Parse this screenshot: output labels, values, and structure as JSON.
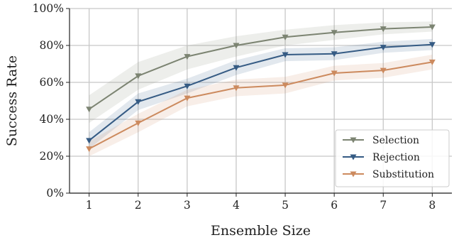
{
  "chart_data": {
    "type": "line",
    "title": "",
    "xlabel": "Ensemble Size",
    "ylabel": "Success Rate",
    "x": [
      1,
      2,
      3,
      4,
      5,
      6,
      7,
      8
    ],
    "xlim": [
      0.6,
      8.4
    ],
    "ylim": [
      0,
      100
    ],
    "yticks": [
      0,
      20,
      40,
      60,
      80,
      100
    ],
    "ytick_labels": [
      "0%",
      "20%",
      "40%",
      "60%",
      "80%",
      "100%"
    ],
    "xtick_labels": [
      "1",
      "2",
      "3",
      "4",
      "5",
      "6",
      "7",
      "8"
    ],
    "grid": true,
    "legend_position": "bottom-right",
    "series": [
      {
        "name": "Selection",
        "color": "#7c8472",
        "values": [
          45.5,
          63.5,
          74,
          80,
          84.5,
          87,
          89,
          90
        ],
        "lower": [
          38,
          56,
          67,
          74,
          80,
          83,
          86,
          87.5
        ],
        "upper": [
          53,
          71,
          80,
          85,
          88.5,
          91,
          92.5,
          93
        ]
      },
      {
        "name": "Rejection",
        "color": "#355b84",
        "values": [
          28.5,
          49.5,
          58,
          68,
          75,
          75.5,
          79,
          80.5
        ],
        "lower": [
          24,
          45,
          54,
          64,
          71.5,
          72,
          76,
          77.5
        ],
        "upper": [
          33,
          54,
          62,
          72,
          78.5,
          79,
          82,
          83.5
        ]
      },
      {
        "name": "Substitution",
        "color": "#cc8a5e",
        "values": [
          24,
          38,
          51.5,
          57,
          58.5,
          65,
          66.5,
          71
        ],
        "lower": [
          20,
          33,
          47,
          52.5,
          54,
          61,
          62.5,
          67
        ],
        "upper": [
          28,
          43,
          56,
          61.5,
          63,
          69,
          70.5,
          75
        ]
      }
    ]
  }
}
